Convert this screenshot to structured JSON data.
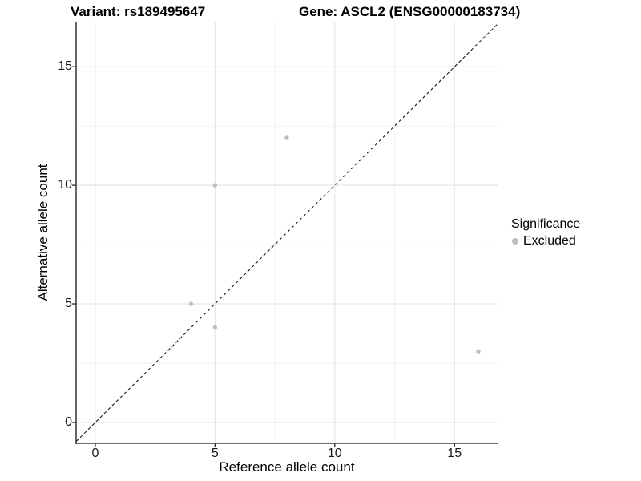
{
  "chart_data": {
    "type": "scatter",
    "title_variant": "Variant: rs189495647",
    "title_gene": "Gene: ASCL2 (ENSG00000183734)",
    "xlabel": "Reference allele count",
    "ylabel": "Alternative allele count",
    "xlim": [
      -0.8,
      16.8
    ],
    "ylim": [
      -0.88,
      16.9
    ],
    "xticks": [
      0,
      5,
      10,
      15
    ],
    "yticks": [
      0,
      5,
      10,
      15
    ],
    "minor_xticks": [
      2.5,
      7.5,
      12.5
    ],
    "minor_yticks": [
      2.5,
      7.5,
      12.5
    ],
    "grid": true,
    "series": [
      {
        "name": "Excluded",
        "color": "#bdbdbd",
        "points": [
          {
            "x": 4,
            "y": 5
          },
          {
            "x": 5,
            "y": 4
          },
          {
            "x": 5,
            "y": 10
          },
          {
            "x": 8,
            "y": 12
          },
          {
            "x": 16,
            "y": 3
          }
        ]
      }
    ],
    "identity_line": {
      "equation": "y = x",
      "style": "dashed",
      "color": "#1a1a1a"
    },
    "legend": {
      "title": "Significance",
      "position": "right",
      "items": [
        {
          "label": "Excluded",
          "color": "#bdbdbd"
        }
      ]
    },
    "colors": {
      "background": "#ffffff",
      "grid_major": "#e6e6e6",
      "grid_minor": "#f1f1f1",
      "axis_line": "#404040",
      "tick_mark": "#333333",
      "point": "#bdbdbd"
    }
  }
}
